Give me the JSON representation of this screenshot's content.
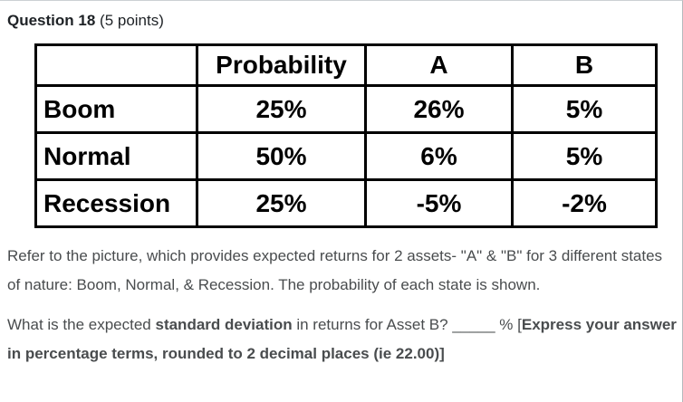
{
  "page": {
    "title_bold": "Question 18",
    "title_rest": " (5 points)"
  },
  "table": {
    "columns": [
      "",
      "Probability",
      "A",
      "B"
    ],
    "rows": [
      [
        "Boom",
        "25%",
        "26%",
        "5%"
      ],
      [
        "Normal",
        "50%",
        "6%",
        "5%"
      ],
      [
        "Recession",
        "25%",
        "-5%",
        "-2%"
      ]
    ]
  },
  "body": {
    "intro": "Refer to the picture, which provides expected returns for 2 assets- \"A\" & \"B\" for 3 different states of nature: Boom, Normal, & Recession. The probability of each state is shown.",
    "question_segments": [
      {
        "text": "What is the expected ",
        "bold": false
      },
      {
        "text": "standard deviation",
        "bold": true
      },
      {
        "text": " in returns for Asset B? _____ % [",
        "bold": false
      },
      {
        "text": "Express your answer in percentage terms, rounded to 2 decimal places (ie 22.00)]",
        "bold": true
      }
    ]
  }
}
